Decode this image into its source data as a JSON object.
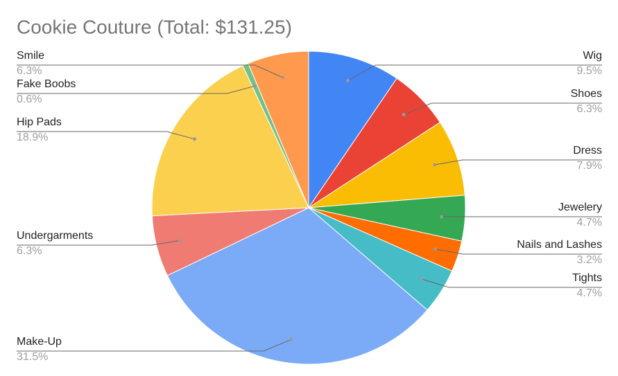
{
  "chart_data": {
    "type": "pie",
    "title": "Cookie Couture (Total: $131.25)",
    "categories": [
      "Wig",
      "Shoes",
      "Dress",
      "Jewelery",
      "Nails and Lashes",
      "Tights",
      "Make-Up",
      "Undergarments",
      "Hip Pads",
      "Fake Boobs",
      "Smile"
    ],
    "values": [
      9.5,
      6.3,
      7.9,
      4.7,
      3.2,
      4.7,
      31.5,
      6.3,
      18.9,
      0.6,
      6.3
    ],
    "value_labels": [
      "9.5%",
      "6.3%",
      "7.9%",
      "4.7%",
      "3.2%",
      "4.7%",
      "31.5%",
      "6.3%",
      "18.9%",
      "0.6%",
      "6.3%"
    ],
    "colors": [
      "#4285f4",
      "#ea4335",
      "#fbbc04",
      "#34a853",
      "#ff6d01",
      "#46bdc6",
      "#7baaf7",
      "#f07b72",
      "#fcd04f",
      "#71c287",
      "#ff994d"
    ]
  }
}
